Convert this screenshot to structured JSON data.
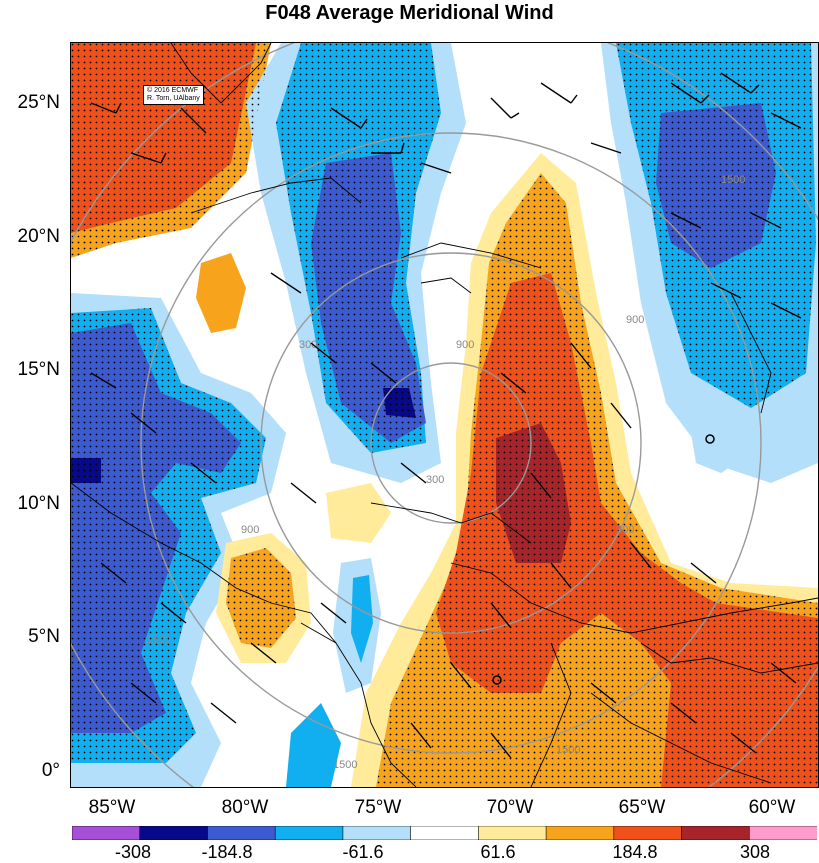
{
  "title": "F048 Average Meridional Wind",
  "credits": {
    "line1": "© 2016 ECMWF",
    "line2": "R. Torn, UAlbany"
  },
  "lat_labels": [
    "25°N",
    "20°N",
    "15°N",
    "10°N",
    "5°N",
    "0°"
  ],
  "lon_labels": [
    "85°W",
    "80°W",
    "75°W",
    "70°W",
    "65°W",
    "60°W"
  ],
  "contour_labels": [
    "900",
    "300",
    "300",
    "900",
    "1500",
    "1500",
    "1500",
    "1500",
    "900",
    "900"
  ],
  "colorbar": {
    "labels": [
      "-308",
      "-184.8",
      "-61.6",
      "61.6",
      "184.8",
      "308"
    ],
    "colors": [
      "#a64fd8",
      "#08088a",
      "#3d5bd0",
      "#12aff0",
      "#b3dffa",
      "#ffffff",
      "#ffeb99",
      "#f7a41c",
      "#f0511b",
      "#a8242b",
      "#ff9ccc"
    ]
  },
  "fill_colors": {
    "dark_blue": "#08088a",
    "blue": "#3d5bd0",
    "cyan": "#12aff0",
    "light_blue": "#b3dffa",
    "light_yellow": "#ffeb99",
    "orange": "#f7a41c",
    "red_orange": "#f0511b",
    "dark_red": "#a8242b"
  }
}
